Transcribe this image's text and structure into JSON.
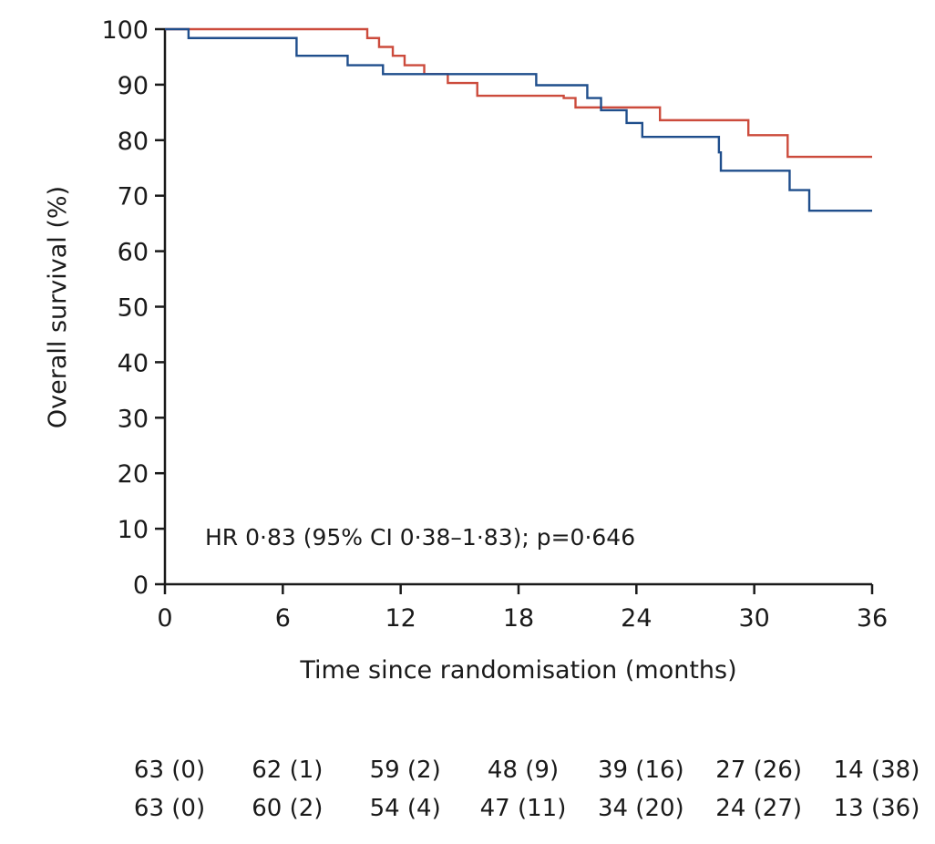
{
  "chart_data": {
    "type": "line",
    "step": true,
    "xlabel": "Time since randomisation (months)",
    "ylabel": "Overall survival (%)",
    "xlim": [
      0,
      36
    ],
    "ylim": [
      0,
      100
    ],
    "xticks": [
      0,
      6,
      12,
      18,
      24,
      30,
      36
    ],
    "yticks": [
      0,
      10,
      20,
      30,
      40,
      50,
      60,
      70,
      80,
      90,
      100
    ],
    "grid": false,
    "annotation": "HR 0·83 (95% CI 0·38–1·83); p=0·646",
    "series": [
      {
        "color": "#cc4b3c",
        "x": [
          0,
          10.3,
          10.9,
          11.6,
          12.2,
          13.2,
          14.4,
          15.9,
          20.3,
          20.9,
          22.2,
          25.2,
          29.7,
          31.7,
          36
        ],
        "y": [
          100,
          98.4,
          96.8,
          95.2,
          93.5,
          91.9,
          90.3,
          88.0,
          87.6,
          85.9,
          85.9,
          83.6,
          80.9,
          77.0,
          77.0
        ]
      },
      {
        "color": "#1f4e8c",
        "x": [
          0,
          1.2,
          6.7,
          9.3,
          11.1,
          18.9,
          21.5,
          22.2,
          23.5,
          24.3,
          28.2,
          28.3,
          31.8,
          32.8,
          36
        ],
        "y": [
          100,
          98.4,
          95.2,
          93.5,
          91.9,
          89.9,
          87.6,
          85.4,
          83.1,
          80.6,
          77.8,
          74.5,
          71.0,
          67.3,
          67.3
        ]
      }
    ],
    "risk_table": {
      "rows": [
        [
          "63 (0)",
          "62 (1)",
          "59 (2)",
          "48 (9)",
          "39 (16)",
          "27 (26)",
          "14 (38)"
        ],
        [
          "63 (0)",
          "60 (2)",
          "54 (4)",
          "47 (11)",
          "34 (20)",
          "24 (27)",
          "13 (36)"
        ]
      ]
    }
  }
}
